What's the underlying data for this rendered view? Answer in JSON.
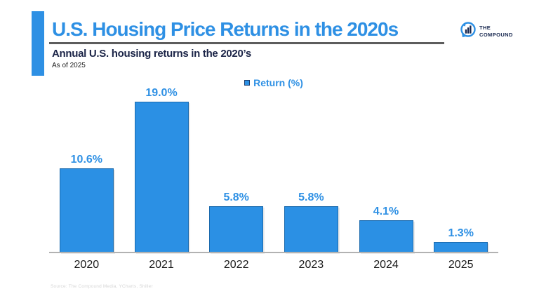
{
  "header": {
    "title": "U.S. Housing Price Returns in the 2020s",
    "subtitle": "Annual U.S. housing returns in the 2020’s",
    "as_of": "As of 2025"
  },
  "logo": {
    "line1": "THE",
    "line2": "COMPOUND"
  },
  "legend": {
    "label": "Return (%)"
  },
  "source": "Source: The Compound Media, YCharts, Shiller",
  "colors": {
    "accent_blue": "#2E90E4",
    "bar_fill": "#2B90E4",
    "bar_border": "#1A6AAE",
    "navy_text": "#1B2447",
    "divider_gray": "#5d5d5d",
    "axis_gray": "#b2b2b2",
    "source_gray": "#d6d6d6"
  },
  "chart_data": {
    "type": "bar",
    "categories": [
      "2020",
      "2021",
      "2022",
      "2023",
      "2024",
      "2025"
    ],
    "values": [
      10.6,
      19.0,
      5.8,
      5.8,
      4.1,
      1.3
    ],
    "value_labels": [
      "10.6%",
      "19.0%",
      "5.8%",
      "5.8%",
      "4.1%",
      "1.3%"
    ],
    "series_name": "Return (%)",
    "title": "U.S. Housing Price Returns in the 2020s",
    "xlabel": "",
    "ylabel": "Return (%)",
    "ylim": [
      0,
      19
    ],
    "grid": false,
    "legend_position": "top-center"
  }
}
